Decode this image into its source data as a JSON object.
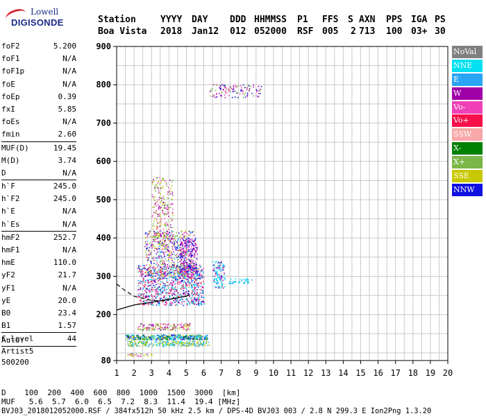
{
  "logo": {
    "line1": "Lowell",
    "line2": "DIGISONDE"
  },
  "header": {
    "row1": [
      "Station",
      "YYYY",
      "DAY",
      "DDD",
      "HHMMSS",
      "P1",
      "FFS",
      "S",
      "AXN",
      "PPS",
      "IGA",
      "PS"
    ],
    "row2": [
      "Boa Vista",
      "2018",
      "Jan12",
      "012",
      "052000",
      "RSF",
      "005",
      "2",
      "713",
      "100",
      "03+",
      "30"
    ]
  },
  "params": [
    {
      "k": "foF2",
      "v": "5.200"
    },
    {
      "k": "foF1",
      "v": "N/A"
    },
    {
      "k": "foF1p",
      "v": "N/A"
    },
    {
      "k": "foE",
      "v": "N/A"
    },
    {
      "k": "foEp",
      "v": "0.39"
    },
    {
      "k": "fxI",
      "v": "5.85"
    },
    {
      "k": "foEs",
      "v": "N/A"
    },
    {
      "k": "fmin",
      "v": "2.60",
      "sep": true
    },
    {
      "k": "MUF(D)",
      "v": "19.45"
    },
    {
      "k": "M(D)",
      "v": "3.74"
    },
    {
      "k": "D",
      "v": "N/A",
      "sep": true
    },
    {
      "k": "h`F",
      "v": "245.0"
    },
    {
      "k": "h`F2",
      "v": "245.0"
    },
    {
      "k": "h`E",
      "v": "N/A"
    },
    {
      "k": "h`Es",
      "v": "N/A",
      "sep": true
    },
    {
      "k": "hmF2",
      "v": "252.7"
    },
    {
      "k": "hmF1",
      "v": "N/A"
    },
    {
      "k": "hmE",
      "v": "110.0"
    },
    {
      "k": "yF2",
      "v": "21.7"
    },
    {
      "k": "yF1",
      "v": "N/A"
    },
    {
      "k": "yE",
      "v": "20.0"
    },
    {
      "k": "B0",
      "v": "23.4"
    },
    {
      "k": "B1",
      "v": "1.57",
      "sep": true
    },
    {
      "k": "C-level",
      "v": "44",
      "sep": true
    }
  ],
  "autoscale": {
    "line1": "Auto:",
    "line2": "Artist5",
    "line3": "500200"
  },
  "legend": [
    {
      "label": "NoVal",
      "color": "#808080"
    },
    {
      "label": "NNE",
      "color": "#00e0f0"
    },
    {
      "label": "E",
      "color": "#2aa4f4"
    },
    {
      "label": "W",
      "color": "#a000a8"
    },
    {
      "label": "Vo-",
      "color": "#f040b8"
    },
    {
      "label": "Vo+",
      "color": "#f8104a"
    },
    {
      "label": "SSW",
      "color": "#f8a8a8"
    },
    {
      "label": "X-",
      "color": "#008000"
    },
    {
      "label": "X+",
      "color": "#7ab648"
    },
    {
      "label": "SSE",
      "color": "#c8c800"
    },
    {
      "label": "NNW",
      "color": "#1010e0"
    }
  ],
  "chart_data": {
    "type": "scatter",
    "xlim": [
      1,
      20
    ],
    "ylim": [
      80,
      900
    ],
    "x_ticks": [
      1,
      2,
      3,
      4,
      5,
      6,
      7,
      8,
      9,
      10,
      11,
      12,
      13,
      14,
      15,
      16,
      17,
      18,
      19,
      20
    ],
    "y_ticks": [
      80,
      200,
      300,
      400,
      500,
      600,
      700,
      800,
      900
    ],
    "grid": true,
    "dashed_curve": [
      [
        1,
        280
      ],
      [
        1.5,
        262
      ],
      [
        2,
        248
      ],
      [
        3,
        237
      ],
      [
        3.5,
        236
      ],
      [
        4,
        237
      ]
    ],
    "solid_curve": [
      [
        1,
        212
      ],
      [
        2,
        225
      ],
      [
        3,
        232
      ],
      [
        4,
        240
      ],
      [
        5,
        248
      ],
      [
        5.2,
        252
      ]
    ]
  },
  "dmuf": {
    "d_label": "D",
    "muf_label": "MUF",
    "unit_d": "[km]",
    "unit_muf": "[MHz]",
    "d": [
      "100",
      "200",
      "400",
      "600",
      "800",
      "1000",
      "1500",
      "3000"
    ],
    "muf": [
      "5.6",
      "5.7",
      "6.0",
      "6.5",
      "7.2",
      "8.3",
      "11.4",
      "19.4"
    ]
  },
  "footer": "BVJ03_2018012052000.RSF / 384fx512h 50 kHz 2.5 km / DPS-4D BVJ03 003 / 2.8 N 299.3 E Ion2Png 1.3.20"
}
